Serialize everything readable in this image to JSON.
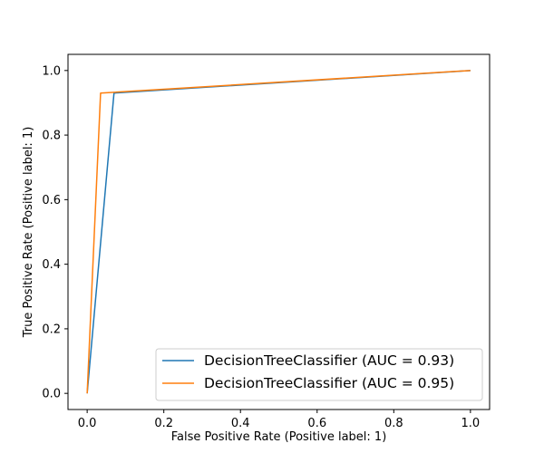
{
  "chart_data": {
    "type": "line",
    "title": "",
    "xlabel": "False Positive Rate (Positive label: 1)",
    "ylabel": "True Positive Rate (Positive label: 1)",
    "xlim": [
      -0.05,
      1.05
    ],
    "ylim": [
      -0.05,
      1.05
    ],
    "xticks": [
      0.0,
      0.2,
      0.4,
      0.6,
      0.8,
      1.0
    ],
    "yticks": [
      0.0,
      0.2,
      0.4,
      0.6,
      0.8,
      1.0
    ],
    "xtick_labels": [
      "0.0",
      "0.2",
      "0.4",
      "0.6",
      "0.8",
      "1.0"
    ],
    "ytick_labels": [
      "0.0",
      "0.2",
      "0.4",
      "0.6",
      "0.8",
      "1.0"
    ],
    "grid": false,
    "legend_position": "bottom-right",
    "series": [
      {
        "name": "DecisionTreeClassifier (AUC = 0.93)",
        "color": "#1f77b4",
        "x": [
          0.0,
          0.07,
          1.0
        ],
        "y": [
          0.0,
          0.93,
          1.0
        ]
      },
      {
        "name": "DecisionTreeClassifier (AUC = 0.95)",
        "color": "#ff7f0e",
        "x": [
          0.0,
          0.035,
          1.0
        ],
        "y": [
          0.0,
          0.93,
          1.0
        ]
      }
    ]
  }
}
